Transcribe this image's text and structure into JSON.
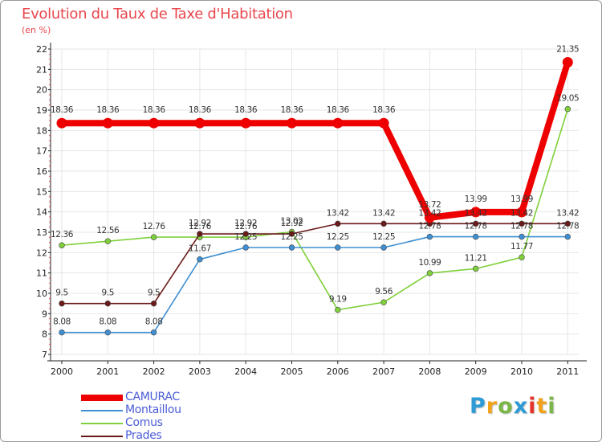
{
  "chart_data": {
    "type": "line",
    "title": "Evolution du Taux de Taxe d'Habitation",
    "subtitle": "(en %)",
    "xlabel": "",
    "ylabel": "",
    "ylim": [
      7,
      22
    ],
    "yticks": [
      "7",
      "8",
      "9",
      "10",
      "11",
      "12",
      "13",
      "14",
      "15",
      "16",
      "17",
      "18",
      "19",
      "20",
      "21",
      "22"
    ],
    "categories": [
      "2000",
      "2001",
      "2002",
      "2003",
      "2004",
      "2005",
      "2006",
      "2007",
      "2008",
      "2009",
      "2010",
      "2011"
    ],
    "series": [
      {
        "name": "CAMURAC",
        "color": "#ee0000",
        "emphasis": "thick",
        "values": [
          18.36,
          18.36,
          18.36,
          18.36,
          18.36,
          18.36,
          18.36,
          18.36,
          13.72,
          13.99,
          13.99,
          21.35
        ],
        "labels": [
          "18.36",
          "18.36",
          "18.36",
          "18.36",
          "18.36",
          "18.36",
          "18.36",
          "18.36",
          "13.72",
          "13.99",
          "13.99",
          "21.35"
        ]
      },
      {
        "name": "Montaillou",
        "color": "#3f8fd2",
        "emphasis": "thin",
        "values": [
          8.08,
          8.08,
          8.08,
          11.67,
          12.25,
          12.25,
          12.25,
          12.25,
          12.78,
          12.78,
          12.78,
          12.78
        ],
        "labels": [
          "8.08",
          "8.08",
          "8.08",
          "11.67",
          "12.25",
          "12.25",
          "12.25",
          "12.25",
          "12.78",
          "12.78",
          "12.78",
          "12.78"
        ]
      },
      {
        "name": "Comus",
        "color": "#7fd03a",
        "emphasis": "thin",
        "values": [
          12.36,
          12.56,
          12.76,
          12.76,
          12.76,
          13.02,
          9.19,
          9.56,
          10.99,
          11.21,
          11.77,
          19.05
        ],
        "labels": [
          "12.36",
          "12.56",
          "12.76",
          "12.76",
          "12.76",
          "13.02",
          "9.19",
          "9.56",
          "10.99",
          "11.21",
          "11.77",
          "19.05"
        ]
      },
      {
        "name": "Prades",
        "color": "#6b1a1a",
        "emphasis": "thin",
        "values": [
          9.5,
          9.5,
          9.5,
          12.92,
          12.92,
          12.92,
          13.42,
          13.42,
          13.42,
          13.42,
          13.42,
          13.42
        ],
        "labels": [
          "9.5",
          "9.5",
          "9.5",
          "12.92",
          "12.92",
          "12.92",
          "13.42",
          "13.42",
          "13.42",
          "13.42",
          "13.42",
          "13.42"
        ]
      }
    ],
    "legend_position": "bottom-left"
  },
  "brand": {
    "letters": [
      "P",
      "r",
      "o",
      "x",
      "i",
      "t",
      "i"
    ],
    "colors": [
      "#2e9bd6",
      "#f2a21b",
      "#7ab648",
      "#2e9bd6",
      "#e5352b",
      "#f2a21b",
      "#7ab648"
    ]
  }
}
